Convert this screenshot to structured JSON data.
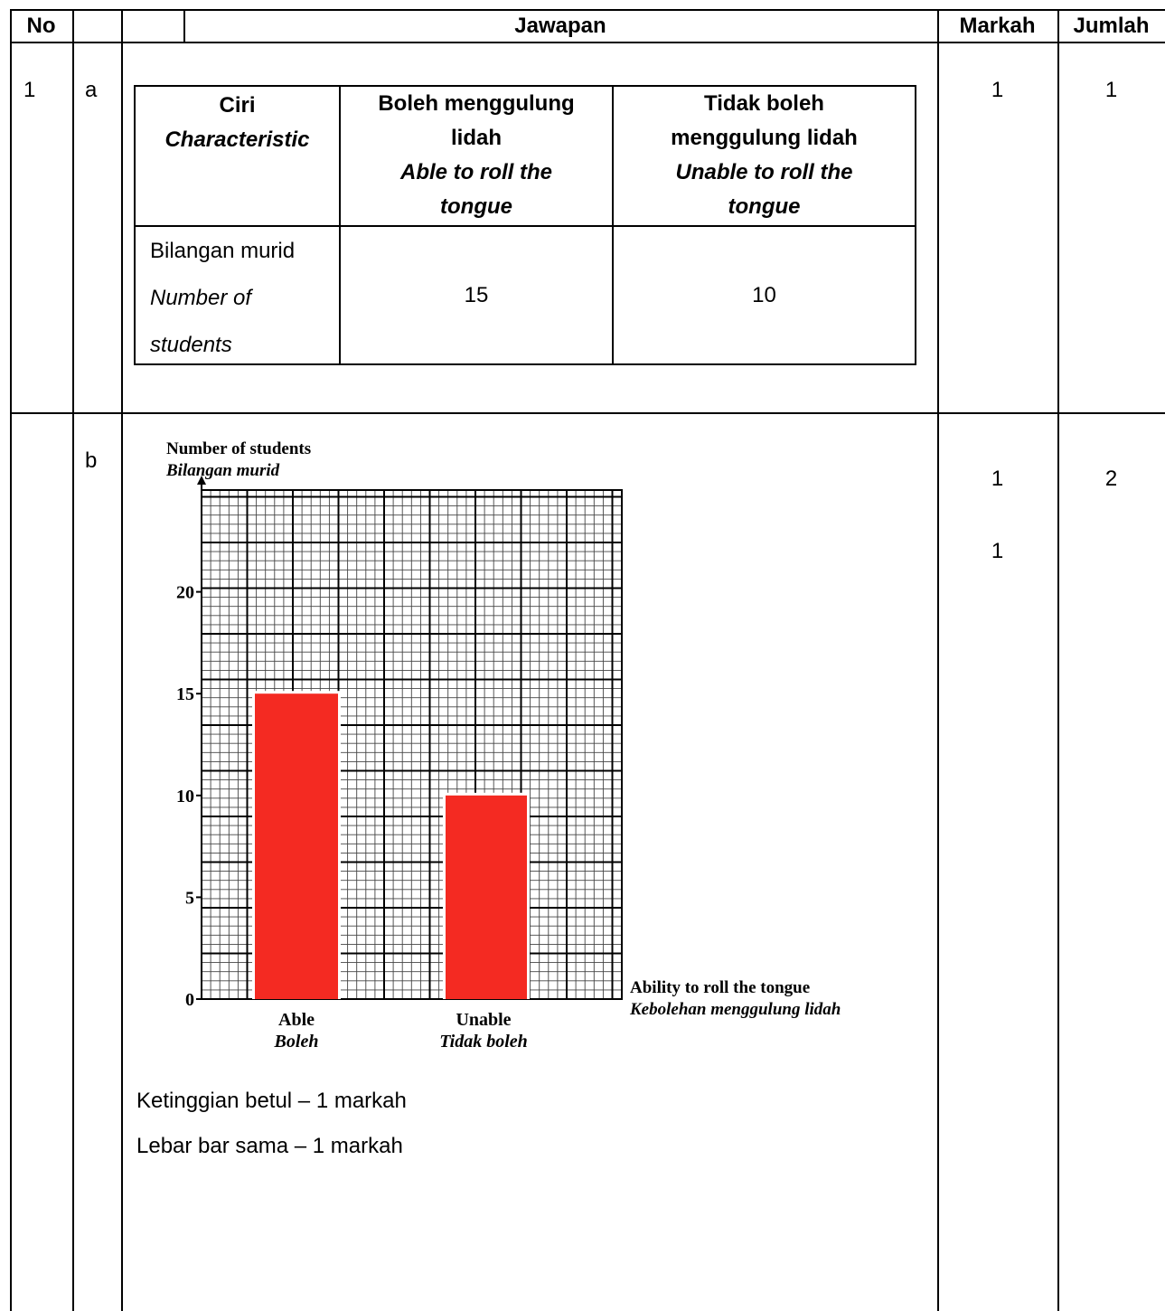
{
  "header": {
    "no": "No",
    "jawapan": "Jawapan",
    "markah": "Markah",
    "jumlah": "Jumlah"
  },
  "rows": [
    {
      "no": "1",
      "part": "a",
      "markah": [
        "1"
      ],
      "jumlah": "1"
    },
    {
      "no": "",
      "part": "b",
      "markah": [
        "1",
        "1"
      ],
      "jumlah": "2"
    }
  ],
  "inner_table": {
    "col1_head": {
      "bm": "Ciri",
      "en": "Characteristic"
    },
    "col2_head": {
      "bm_line1": "Boleh menggulung",
      "bm_line2": "lidah",
      "en_line1": "Able to roll the",
      "en_line2": "tongue"
    },
    "col3_head": {
      "bm_line1": "Tidak boleh",
      "bm_line2": "menggulung lidah",
      "en_line1": "Unable to roll the",
      "en_line2": "tongue"
    },
    "row_label": {
      "bm": "Bilangan murid",
      "en_line1": "Number of",
      "en_line2": "students"
    },
    "values": [
      "15",
      "10"
    ]
  },
  "chart_data": {
    "type": "bar",
    "categories": [
      "Able",
      "Unable"
    ],
    "categories_bm": [
      "Boleh",
      "Tidak boleh"
    ],
    "values": [
      15,
      10
    ],
    "ylabel": "Number of students",
    "ylabel_bm": "Bilangan murid",
    "xlabel": "Ability to roll the tongue",
    "xlabel_bm": "Kebolehan menggulung lidah",
    "yticks": [
      0,
      5,
      10,
      15,
      20
    ],
    "ylim": [
      0,
      25
    ],
    "grid": true,
    "bar_color": "#f42a22"
  },
  "notes": [
    "Ketinggian betul – 1 markah",
    "Lebar bar sama – 1 markah"
  ]
}
